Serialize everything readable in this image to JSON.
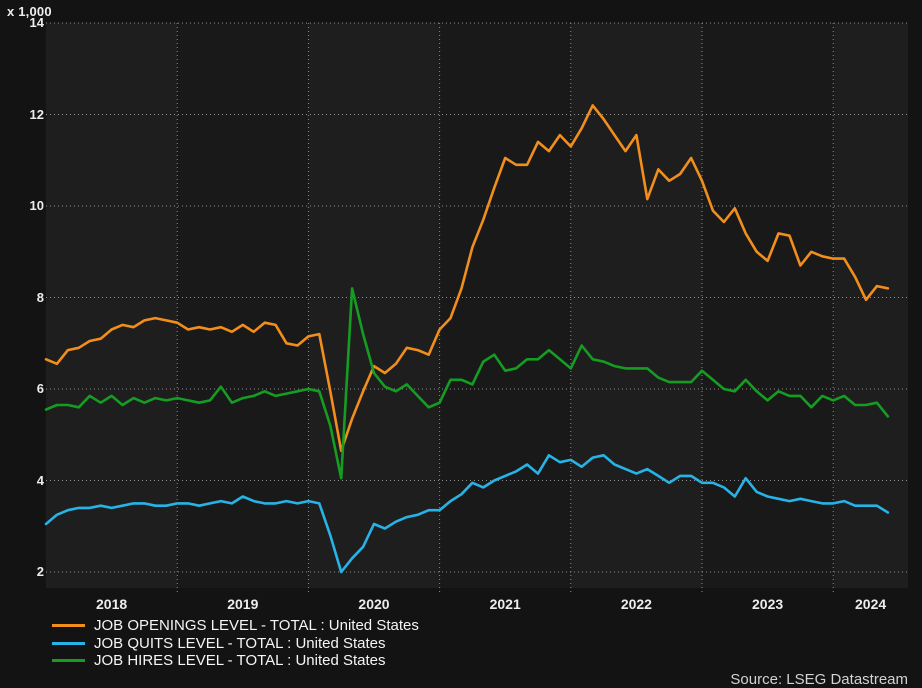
{
  "unit_label": "x 1,000",
  "source_note": "Source: LSEG Datastream",
  "colors": {
    "outer_background": "#131313",
    "band_even_year": "#1e1e1e",
    "band_odd_year": "#191919",
    "gridline": "#8f8f8f",
    "axis_text": "#ededed",
    "legend_text": "#f5f5f5",
    "source_text": "#d2d2d2",
    "openings_line": "#F28E1C",
    "quits_line": "#27B3E6",
    "hires_line": "#159D22"
  },
  "chart_data": {
    "type": "line",
    "title": "",
    "unit_label": "x 1,000",
    "frequency": "monthly",
    "x_start": "2018-01",
    "x_end": "2024-06",
    "x_tick_labels": [
      "2018",
      "2019",
      "2020",
      "2021",
      "2022",
      "2023",
      "2024"
    ],
    "y_ticks": [
      2,
      4,
      6,
      8,
      10,
      12,
      14
    ],
    "ylim": [
      2,
      14
    ],
    "grid": "dotted",
    "legend_position": "bottom-left",
    "series": [
      {
        "name": "JOB OPENINGS LEVEL - TOTAL : United States",
        "color": "#F28E1C",
        "values": [
          6.65,
          6.55,
          6.85,
          6.9,
          7.05,
          7.1,
          7.3,
          7.4,
          7.35,
          7.5,
          7.55,
          7.5,
          7.45,
          7.3,
          7.35,
          7.3,
          7.35,
          7.25,
          7.4,
          7.25,
          7.45,
          7.4,
          7.0,
          6.95,
          7.15,
          7.2,
          5.95,
          4.65,
          5.35,
          5.95,
          6.5,
          6.35,
          6.55,
          6.9,
          6.85,
          6.75,
          7.3,
          7.55,
          8.2,
          9.1,
          9.7,
          10.4,
          11.05,
          10.9,
          10.9,
          11.4,
          11.2,
          11.55,
          11.3,
          11.7,
          12.2,
          11.9,
          11.55,
          11.2,
          11.55,
          10.15,
          10.8,
          10.55,
          10.7,
          11.05,
          10.55,
          9.9,
          9.65,
          9.95,
          9.4,
          9.0,
          8.8,
          9.4,
          9.35,
          8.7,
          9.0,
          8.9,
          8.85,
          8.85,
          8.45,
          7.95,
          8.25,
          8.2
        ]
      },
      {
        "name": "JOB QUITS LEVEL - TOTAL : United States",
        "color": "#27B3E6",
        "values": [
          3.05,
          3.25,
          3.35,
          3.4,
          3.4,
          3.45,
          3.4,
          3.45,
          3.5,
          3.5,
          3.45,
          3.45,
          3.5,
          3.5,
          3.45,
          3.5,
          3.55,
          3.5,
          3.65,
          3.55,
          3.5,
          3.5,
          3.55,
          3.5,
          3.55,
          3.5,
          2.8,
          2.0,
          2.3,
          2.55,
          3.05,
          2.95,
          3.1,
          3.2,
          3.25,
          3.35,
          3.35,
          3.55,
          3.7,
          3.95,
          3.85,
          4.0,
          4.1,
          4.2,
          4.35,
          4.15,
          4.55,
          4.4,
          4.45,
          4.3,
          4.5,
          4.55,
          4.35,
          4.25,
          4.15,
          4.25,
          4.1,
          3.95,
          4.1,
          4.1,
          3.95,
          3.95,
          3.85,
          3.65,
          4.05,
          3.75,
          3.65,
          3.6,
          3.55,
          3.6,
          3.55,
          3.5,
          3.5,
          3.55,
          3.45,
          3.45,
          3.45,
          3.3
        ]
      },
      {
        "name": "JOB HIRES LEVEL - TOTAL : United States",
        "color": "#159D22",
        "values": [
          5.55,
          5.65,
          5.65,
          5.6,
          5.85,
          5.7,
          5.85,
          5.65,
          5.8,
          5.7,
          5.8,
          5.75,
          5.8,
          5.75,
          5.7,
          5.75,
          6.05,
          5.7,
          5.8,
          5.85,
          5.95,
          5.85,
          5.9,
          5.95,
          6.0,
          5.95,
          5.2,
          4.05,
          8.2,
          7.2,
          6.35,
          6.05,
          5.95,
          6.1,
          5.85,
          5.6,
          5.7,
          6.2,
          6.2,
          6.1,
          6.6,
          6.75,
          6.4,
          6.45,
          6.65,
          6.65,
          6.85,
          6.65,
          6.45,
          6.95,
          6.65,
          6.6,
          6.5,
          6.45,
          6.45,
          6.45,
          6.25,
          6.15,
          6.15,
          6.15,
          6.4,
          6.2,
          6.0,
          5.95,
          6.2,
          5.95,
          5.75,
          5.95,
          5.85,
          5.85,
          5.6,
          5.85,
          5.75,
          5.85,
          5.65,
          5.65,
          5.7,
          5.4
        ]
      }
    ]
  }
}
